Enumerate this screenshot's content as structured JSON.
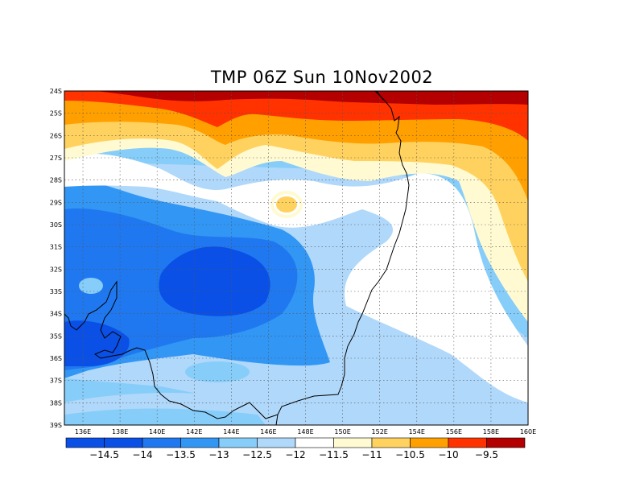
{
  "title": "TMP 06Z Sun 10Nov2002",
  "map": {
    "lat_labels": [
      "24S",
      "25S",
      "26S",
      "27S",
      "28S",
      "29S",
      "30S",
      "31S",
      "32S",
      "33S",
      "34S",
      "35S",
      "36S",
      "37S",
      "38S",
      "39S"
    ],
    "lon_labels": [
      "136E",
      "138E",
      "140E",
      "142E",
      "144E",
      "146E",
      "148E",
      "150E",
      "152E",
      "154E",
      "156E",
      "158E",
      "160E"
    ],
    "lon_range": [
      135,
      160
    ],
    "lat_range": [
      -24,
      -39
    ],
    "grid": "dotted"
  },
  "colorbar": {
    "labels": [
      "-14.5",
      "-14",
      "-13.5",
      "-13",
      "-12.5",
      "-12",
      "-11.5",
      "-11",
      "-10.5",
      "-10",
      "-9.5"
    ],
    "colors": [
      "#0a50e6",
      "#1f78f0",
      "#3296f5",
      "#87cdfa",
      "#b0d8fa",
      "#ffffff",
      "#fffad2",
      "#ffd25f",
      "#ffa000",
      "#ff3200",
      "#b40000"
    ]
  }
}
